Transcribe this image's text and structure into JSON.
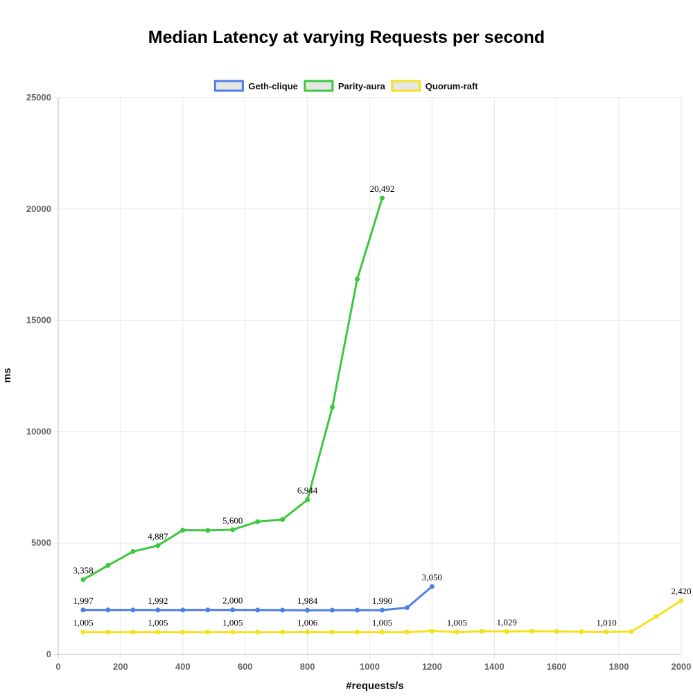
{
  "chart_data": {
    "type": "line",
    "title": "Median Latency at varying Requests per second",
    "xlabel": "#requests/s",
    "ylabel": "ms",
    "xlim": [
      0,
      2000
    ],
    "ylim": [
      0,
      25000
    ],
    "x_ticks": [
      "0",
      "200",
      "400",
      "600",
      "800",
      "1000",
      "1200",
      "1400",
      "1600",
      "1800",
      "2000"
    ],
    "y_ticks": [
      "0",
      "5000",
      "10000",
      "15000",
      "20000",
      "25000"
    ],
    "grid": true,
    "legend_position": "top-center",
    "series": [
      {
        "name": "Geth-clique",
        "color": "#4e7fe8",
        "points": [
          [
            80,
            1997
          ],
          [
            160,
            1997
          ],
          [
            240,
            1995
          ],
          [
            320,
            1992
          ],
          [
            400,
            1995
          ],
          [
            480,
            1997
          ],
          [
            560,
            2000
          ],
          [
            640,
            1995
          ],
          [
            720,
            1990
          ],
          [
            800,
            1984
          ],
          [
            880,
            1988
          ],
          [
            960,
            1990
          ],
          [
            1040,
            1990
          ],
          [
            1120,
            2100
          ],
          [
            1200,
            3050
          ]
        ],
        "labels": [
          {
            "x": 80,
            "y": 1997,
            "text": "1,997"
          },
          {
            "x": 320,
            "y": 1992,
            "text": "1,992"
          },
          {
            "x": 560,
            "y": 2000,
            "text": "2,000"
          },
          {
            "x": 800,
            "y": 1984,
            "text": "1,984"
          },
          {
            "x": 1040,
            "y": 1990,
            "text": "1,990"
          },
          {
            "x": 1200,
            "y": 3050,
            "text": "3,050"
          }
        ]
      },
      {
        "name": "Parity-aura",
        "color": "#3cc83c",
        "points": [
          [
            80,
            3358
          ],
          [
            160,
            4000
          ],
          [
            240,
            4620
          ],
          [
            320,
            4887
          ],
          [
            400,
            5580
          ],
          [
            480,
            5570
          ],
          [
            560,
            5600
          ],
          [
            640,
            5960
          ],
          [
            720,
            6060
          ],
          [
            800,
            6944
          ],
          [
            880,
            11100
          ],
          [
            960,
            16850
          ],
          [
            1040,
            20492
          ]
        ],
        "labels": [
          {
            "x": 80,
            "y": 3358,
            "text": "3,358"
          },
          {
            "x": 320,
            "y": 4887,
            "text": "4,887"
          },
          {
            "x": 560,
            "y": 5600,
            "text": "5,600"
          },
          {
            "x": 800,
            "y": 6944,
            "text": "6,944"
          },
          {
            "x": 1040,
            "y": 20492,
            "text": "20,492"
          }
        ]
      },
      {
        "name": "Quorum-raft",
        "color": "#f5e21e",
        "points": [
          [
            80,
            1005
          ],
          [
            160,
            1005
          ],
          [
            240,
            1005
          ],
          [
            320,
            1005
          ],
          [
            400,
            1005
          ],
          [
            480,
            1005
          ],
          [
            560,
            1005
          ],
          [
            640,
            1005
          ],
          [
            720,
            1005
          ],
          [
            800,
            1006
          ],
          [
            880,
            1005
          ],
          [
            960,
            1005
          ],
          [
            1040,
            1005
          ],
          [
            1120,
            1005
          ],
          [
            1200,
            1050
          ],
          [
            1280,
            1005
          ],
          [
            1360,
            1040
          ],
          [
            1440,
            1029
          ],
          [
            1520,
            1040
          ],
          [
            1600,
            1035
          ],
          [
            1680,
            1020
          ],
          [
            1760,
            1010
          ],
          [
            1840,
            1025
          ],
          [
            1920,
            1700
          ],
          [
            2000,
            2420
          ]
        ],
        "labels": [
          {
            "x": 80,
            "y": 1005,
            "text": "1,005"
          },
          {
            "x": 320,
            "y": 1005,
            "text": "1,005"
          },
          {
            "x": 560,
            "y": 1005,
            "text": "1,005"
          },
          {
            "x": 800,
            "y": 1006,
            "text": "1,006"
          },
          {
            "x": 1040,
            "y": 1005,
            "text": "1,005"
          },
          {
            "x": 1280,
            "y": 1005,
            "text": "1,005"
          },
          {
            "x": 1440,
            "y": 1029,
            "text": "1,029"
          },
          {
            "x": 1760,
            "y": 1010,
            "text": "1,010"
          },
          {
            "x": 2000,
            "y": 2420,
            "text": "2,420"
          }
        ]
      }
    ]
  }
}
